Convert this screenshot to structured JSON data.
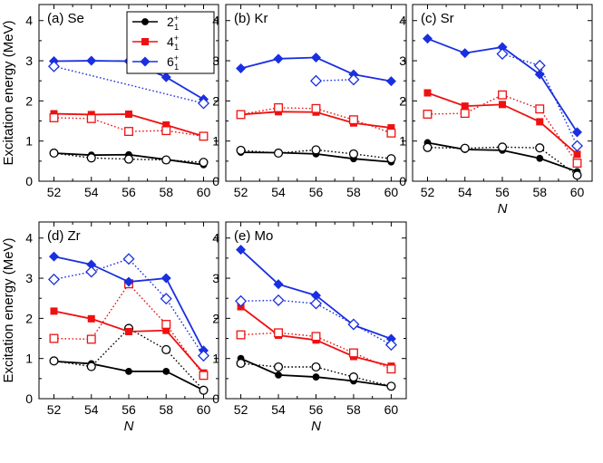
{
  "figure": {
    "ylabel": "Excitation energy (MeV)",
    "xlabel": "N",
    "legend": [
      {
        "name": "2",
        "sup": "+",
        "sub": "1",
        "color": "#000000",
        "marker": "circle"
      },
      {
        "name": "4",
        "sup": "+",
        "sub": "1",
        "color": "#ee1111",
        "marker": "square"
      },
      {
        "name": "6",
        "sup": "+",
        "sub": "1",
        "color": "#1a2fe0",
        "marker": "diamond"
      }
    ]
  },
  "chart_data": [
    {
      "type": "line",
      "title": "(a) Se",
      "x_ticks": [
        52,
        54,
        56,
        58,
        60
      ],
      "y_ticks": [
        0,
        1,
        2,
        3,
        4
      ],
      "xlim": [
        51.2,
        60.8
      ],
      "ylim": [
        0,
        4.4
      ],
      "xlabel": "",
      "ylabel": "Excitation energy (MeV)",
      "legend": true,
      "series": [
        {
          "state": "2",
          "style": "exp",
          "x": [
            52,
            54,
            56,
            58,
            60
          ],
          "values": [
            0.7,
            0.65,
            0.66,
            0.54,
            0.41
          ]
        },
        {
          "state": "2",
          "style": "calc",
          "x": [
            52,
            54,
            56,
            58,
            60
          ],
          "values": [
            0.7,
            0.58,
            0.55,
            0.53,
            0.47
          ]
        },
        {
          "state": "4",
          "style": "exp",
          "x": [
            52,
            54,
            56,
            58,
            60
          ],
          "values": [
            1.68,
            1.66,
            1.67,
            1.4,
            1.12
          ]
        },
        {
          "state": "4",
          "style": "calc",
          "x": [
            52,
            54,
            56,
            58,
            60
          ],
          "values": [
            1.58,
            1.56,
            1.24,
            1.26,
            1.12
          ]
        },
        {
          "state": "6",
          "style": "exp",
          "x": [
            52,
            54,
            56,
            58,
            60
          ],
          "values": [
            2.99,
            3.0,
            2.99,
            2.59,
            2.04
          ]
        },
        {
          "state": "6",
          "style": "calc",
          "x": [
            52,
            60
          ],
          "values": [
            2.86,
            1.94
          ]
        }
      ]
    },
    {
      "type": "line",
      "title": "(b) Kr",
      "x_ticks": [
        52,
        54,
        56,
        58,
        60
      ],
      "y_ticks": [
        0,
        1,
        2,
        3,
        4
      ],
      "xlim": [
        51.2,
        60.8
      ],
      "ylim": [
        0,
        4.4
      ],
      "xlabel": "",
      "ylabel": "",
      "legend": false,
      "series": [
        {
          "state": "2",
          "style": "exp",
          "x": [
            52,
            54,
            56,
            58,
            60
          ],
          "values": [
            0.72,
            0.71,
            0.68,
            0.56,
            0.48
          ]
        },
        {
          "state": "2",
          "style": "calc",
          "x": [
            52,
            54,
            56,
            58,
            60
          ],
          "values": [
            0.77,
            0.7,
            0.78,
            0.68,
            0.56
          ]
        },
        {
          "state": "4",
          "style": "exp",
          "x": [
            52,
            54,
            56,
            58,
            60
          ],
          "values": [
            1.66,
            1.73,
            1.72,
            1.45,
            1.33
          ]
        },
        {
          "state": "4",
          "style": "calc",
          "x": [
            52,
            54,
            56,
            58,
            60
          ],
          "values": [
            1.66,
            1.83,
            1.81,
            1.53,
            1.2
          ]
        },
        {
          "state": "6",
          "style": "exp",
          "x": [
            52,
            54,
            56,
            58,
            60
          ],
          "values": [
            2.81,
            3.05,
            3.08,
            2.66,
            2.49
          ]
        },
        {
          "state": "6",
          "style": "calc",
          "x": [
            56,
            58
          ],
          "values": [
            2.5,
            2.53
          ]
        }
      ]
    },
    {
      "type": "line",
      "title": "(c) Sr",
      "x_ticks": [
        52,
        54,
        56,
        58,
        60
      ],
      "y_ticks": [
        0,
        1,
        2,
        3,
        4
      ],
      "xlim": [
        51.2,
        60.8
      ],
      "ylim": [
        0,
        4.4
      ],
      "xlabel": "N",
      "ylabel": "",
      "legend": false,
      "series": [
        {
          "state": "2",
          "style": "exp",
          "x": [
            52,
            54,
            56,
            58,
            60
          ],
          "values": [
            0.96,
            0.79,
            0.77,
            0.57,
            0.24
          ]
        },
        {
          "state": "2",
          "style": "calc",
          "x": [
            52,
            54,
            56,
            58,
            60
          ],
          "values": [
            0.84,
            0.82,
            0.85,
            0.83,
            0.15
          ]
        },
        {
          "state": "4",
          "style": "exp",
          "x": [
            52,
            54,
            56,
            58,
            60
          ],
          "values": [
            2.2,
            1.87,
            1.91,
            1.48,
            0.67
          ]
        },
        {
          "state": "4",
          "style": "calc",
          "x": [
            52,
            54,
            56,
            58,
            60
          ],
          "values": [
            1.67,
            1.69,
            2.15,
            1.8,
            0.45
          ]
        },
        {
          "state": "6",
          "style": "exp",
          "x": [
            52,
            54,
            56,
            58,
            60
          ],
          "values": [
            3.55,
            3.19,
            3.34,
            2.66,
            1.22
          ]
        },
        {
          "state": "6",
          "style": "calc",
          "x": [
            56,
            58,
            60
          ],
          "values": [
            3.17,
            2.88,
            0.88
          ]
        }
      ]
    },
    {
      "type": "line",
      "title": "(d) Zr",
      "x_ticks": [
        52,
        54,
        56,
        58,
        60
      ],
      "y_ticks": [
        0,
        1,
        2,
        3,
        4
      ],
      "xlim": [
        51.2,
        60.8
      ],
      "ylim": [
        0,
        4.4
      ],
      "xlabel": "N",
      "ylabel": "Excitation energy (MeV)",
      "legend": false,
      "series": [
        {
          "state": "2",
          "style": "exp",
          "x": [
            52,
            54,
            56,
            58,
            60
          ],
          "values": [
            0.93,
            0.87,
            0.68,
            0.68,
            0.21
          ]
        },
        {
          "state": "2",
          "style": "calc",
          "x": [
            52,
            54,
            56,
            58,
            60
          ],
          "values": [
            0.94,
            0.8,
            1.75,
            1.22,
            0.21
          ]
        },
        {
          "state": "4",
          "style": "exp",
          "x": [
            52,
            54,
            56,
            58,
            60
          ],
          "values": [
            2.18,
            1.99,
            1.67,
            1.7,
            0.64
          ]
        },
        {
          "state": "4",
          "style": "calc",
          "x": [
            52,
            54,
            56,
            58,
            60
          ],
          "values": [
            1.5,
            1.48,
            2.86,
            1.85,
            0.58
          ]
        },
        {
          "state": "6",
          "style": "exp",
          "x": [
            52,
            54,
            56,
            58,
            60
          ],
          "values": [
            3.54,
            3.34,
            2.91,
            3.0,
            1.2
          ]
        },
        {
          "state": "6",
          "style": "calc",
          "x": [
            52,
            54,
            56,
            58,
            60
          ],
          "values": [
            2.97,
            3.16,
            3.48,
            2.49,
            1.07
          ]
        }
      ]
    },
    {
      "type": "line",
      "title": "(e) Mo",
      "x_ticks": [
        52,
        54,
        56,
        58,
        60
      ],
      "y_ticks": [
        0,
        1,
        2,
        3,
        4
      ],
      "xlim": [
        51.2,
        60.8
      ],
      "ylim": [
        0,
        4.4
      ],
      "xlabel": "N",
      "ylabel": "",
      "legend": false,
      "series": [
        {
          "state": "2",
          "style": "exp",
          "x": [
            52,
            54,
            56,
            58,
            60
          ],
          "values": [
            1.0,
            0.59,
            0.54,
            0.44,
            0.31
          ]
        },
        {
          "state": "2",
          "style": "calc",
          "x": [
            52,
            54,
            56,
            58,
            60
          ],
          "values": [
            0.88,
            0.79,
            0.79,
            0.54,
            0.31
          ]
        },
        {
          "state": "4",
          "style": "exp",
          "x": [
            52,
            54,
            56,
            58,
            60
          ],
          "values": [
            2.29,
            1.58,
            1.46,
            1.05,
            0.81
          ]
        },
        {
          "state": "4",
          "style": "calc",
          "x": [
            52,
            54,
            56,
            58,
            60
          ],
          "values": [
            1.59,
            1.64,
            1.55,
            1.14,
            0.74
          ]
        },
        {
          "state": "6",
          "style": "exp",
          "x": [
            52,
            54,
            56,
            58,
            60
          ],
          "values": [
            3.71,
            2.85,
            2.57,
            1.83,
            1.49
          ]
        },
        {
          "state": "6",
          "style": "calc",
          "x": [
            52,
            54,
            56,
            58,
            60
          ],
          "values": [
            2.43,
            2.45,
            2.37,
            1.85,
            1.34
          ]
        }
      ]
    }
  ]
}
